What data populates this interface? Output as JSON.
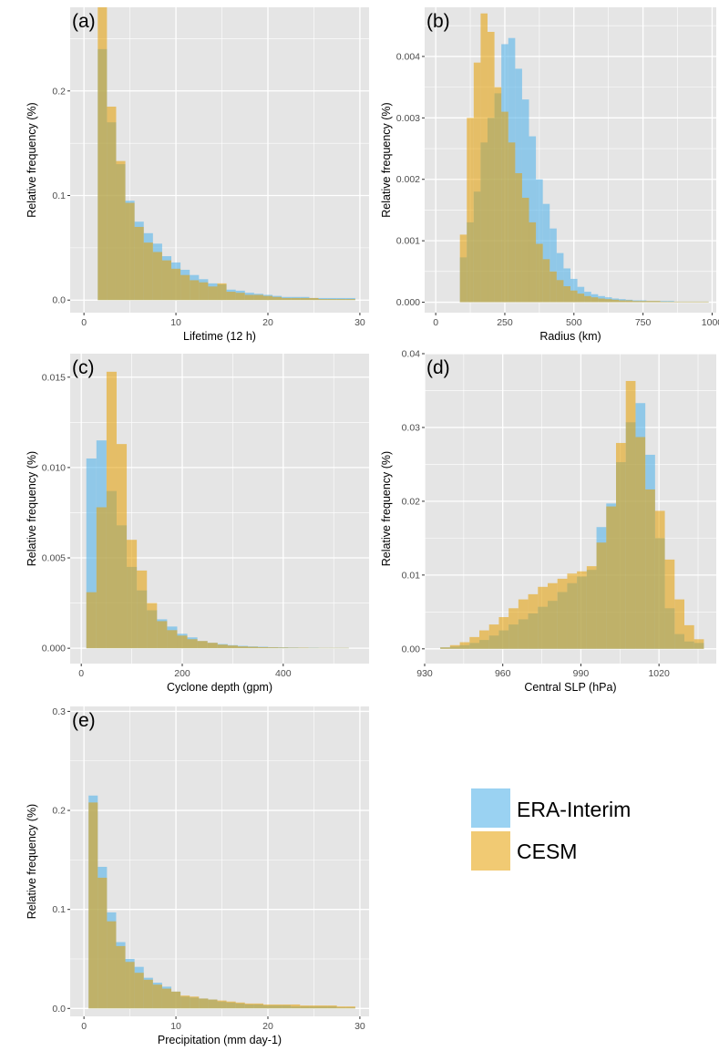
{
  "legend": {
    "items": [
      {
        "label": "ERA-Interim",
        "color": "#56B4E9"
      },
      {
        "label": "CESM",
        "color": "#E69F00"
      }
    ]
  },
  "colors": {
    "panel_bg": "#E5E5E5",
    "grid": "#FFFFFF",
    "era": "#56B4E9",
    "cesm": "#E69F00"
  },
  "chart_data": [
    {
      "type": "bar",
      "panel_label": "(a)",
      "xlabel": "Lifetime (12 h)",
      "ylabel": "Relative frequency (%)",
      "xlim": [
        -1.5,
        31
      ],
      "ylim": [
        -0.012,
        0.28
      ],
      "xticks": [
        0,
        10,
        20,
        30
      ],
      "yticks": [
        0.0,
        0.1,
        0.2
      ],
      "ytick_labels": [
        "0.0",
        "0.1",
        "0.2"
      ],
      "bin_start": 1.5,
      "bin_width": 1,
      "series": [
        {
          "name": "ERA-Interim",
          "values": [
            0.24,
            0.17,
            0.13,
            0.095,
            0.075,
            0.064,
            0.054,
            0.042,
            0.036,
            0.029,
            0.024,
            0.02,
            0.016,
            0.015,
            0.01,
            0.009,
            0.007,
            0.006,
            0.005,
            0.004,
            0.003,
            0.003,
            0.003,
            0.002,
            0.002,
            0.002,
            0.002,
            0.002
          ]
        },
        {
          "name": "CESM",
          "values": [
            0.28,
            0.185,
            0.133,
            0.093,
            0.07,
            0.055,
            0.046,
            0.038,
            0.03,
            0.024,
            0.019,
            0.017,
            0.013,
            0.016,
            0.008,
            0.007,
            0.005,
            0.005,
            0.004,
            0.003,
            0.002,
            0.002,
            0.002,
            0.002,
            0.001,
            0.001,
            0.001,
            0.001
          ]
        }
      ]
    },
    {
      "type": "bar",
      "panel_label": "(b)",
      "xlabel": "Radius (km)",
      "ylabel": "Relative frequency (%)",
      "xlim": [
        -40,
        1015
      ],
      "ylim": [
        -0.00017,
        0.0048
      ],
      "xticks": [
        0,
        250,
        500,
        750,
        1000
      ],
      "yticks": [
        0.0,
        0.001,
        0.002,
        0.003,
        0.004
      ],
      "ytick_labels": [
        "0.000",
        "0.001",
        "0.002",
        "0.003",
        "0.004"
      ],
      "bin_start": 87.5,
      "bin_width": 25,
      "series": [
        {
          "name": "ERA-Interim",
          "values": [
            0.00073,
            0.0013,
            0.0018,
            0.0026,
            0.003,
            0.0034,
            0.0042,
            0.0043,
            0.0038,
            0.0033,
            0.0027,
            0.002,
            0.0016,
            0.0012,
            0.0008,
            0.00055,
            0.00038,
            0.00025,
            0.00017,
            0.00013,
            0.0001,
            8e-05,
            6e-05,
            5e-05,
            4e-05,
            3e-05,
            3e-05,
            2e-05,
            2e-05,
            2e-05,
            2e-05,
            1e-05,
            1e-05,
            1e-05,
            1e-05,
            1e-05
          ]
        },
        {
          "name": "CESM",
          "values": [
            0.0011,
            0.003,
            0.0039,
            0.0047,
            0.0044,
            0.0035,
            0.0031,
            0.0026,
            0.0021,
            0.0017,
            0.0013,
            0.00095,
            0.0007,
            0.0005,
            0.00036,
            0.00026,
            0.00019,
            0.00014,
            0.0001,
            8e-05,
            6e-05,
            5e-05,
            4e-05,
            3e-05,
            3e-05,
            2e-05,
            2e-05,
            2e-05,
            2e-05,
            1e-05,
            1e-05,
            1e-05,
            1e-05,
            1e-05,
            1e-05,
            1e-05
          ]
        }
      ]
    },
    {
      "type": "bar",
      "panel_label": "(c)",
      "xlabel": "Cyclone depth (gpm)",
      "ylabel": "Relative frequency (%)",
      "xlim": [
        -22,
        570
      ],
      "ylim": [
        -0.00085,
        0.0163
      ],
      "xticks": [
        0,
        200,
        400
      ],
      "yticks": [
        0.0,
        0.005,
        0.01,
        0.015
      ],
      "ytick_labels": [
        "0.000",
        "0.005",
        "0.010",
        "0.015"
      ],
      "bin_start": 10,
      "bin_width": 20,
      "series": [
        {
          "name": "ERA-Interim",
          "values": [
            0.0105,
            0.0115,
            0.0087,
            0.0068,
            0.0045,
            0.0032,
            0.0021,
            0.0016,
            0.0012,
            0.0008,
            0.0006,
            0.0004,
            0.0003,
            0.00023,
            0.00017,
            0.00013,
            0.0001,
            8e-05,
            6e-05,
            5e-05,
            4e-05,
            3e-05,
            3e-05,
            2e-05,
            2e-05,
            2e-05
          ]
        },
        {
          "name": "CESM",
          "values": [
            0.0031,
            0.0078,
            0.0153,
            0.0113,
            0.006,
            0.0043,
            0.0025,
            0.0015,
            0.001,
            0.0007,
            0.0005,
            0.0004,
            0.0003,
            0.0002,
            0.00015,
            0.0001,
            8e-05,
            6e-05,
            5e-05,
            4e-05,
            3e-05,
            3e-05,
            2e-05,
            2e-05,
            2e-05,
            2e-05
          ]
        }
      ]
    },
    {
      "type": "bar",
      "panel_label": "(d)",
      "xlabel": "Central SLP (hPa)",
      "ylabel": "Relative frequency (%)",
      "xlim": [
        930,
        1042
      ],
      "ylim": [
        -0.002,
        0.04
      ],
      "xticks": [
        930,
        960,
        990,
        1020
      ],
      "yticks": [
        0.0,
        0.01,
        0.02,
        0.03,
        0.04
      ],
      "ytick_labels": [
        "0.00",
        "0.01",
        "0.02",
        "0.03",
        "0.04"
      ],
      "bin_start": 936,
      "bin_width": 3.75,
      "series": [
        {
          "name": "ERA-Interim",
          "values": [
            0.0002,
            0.0003,
            0.0005,
            0.0008,
            0.0012,
            0.0018,
            0.0025,
            0.0033,
            0.004,
            0.0048,
            0.0057,
            0.0065,
            0.0077,
            0.0089,
            0.0098,
            0.0107,
            0.0165,
            0.0197,
            0.0253,
            0.0307,
            0.0333,
            0.0263,
            0.015,
            0.0055,
            0.002,
            0.001,
            0.0008
          ]
        },
        {
          "name": "CESM",
          "values": [
            0.0002,
            0.0005,
            0.0009,
            0.0016,
            0.0025,
            0.0033,
            0.0043,
            0.0055,
            0.0067,
            0.0074,
            0.0084,
            0.0089,
            0.0095,
            0.0102,
            0.0105,
            0.0112,
            0.0144,
            0.0193,
            0.0279,
            0.0363,
            0.0287,
            0.0216,
            0.0187,
            0.0121,
            0.0067,
            0.0032,
            0.0013
          ]
        }
      ]
    },
    {
      "type": "bar",
      "panel_label": "(e)",
      "xlabel": "Precipitation (mm day-1)",
      "ylabel": "Relative frequency (%)",
      "xlim": [
        -1.5,
        31
      ],
      "ylim": [
        -0.008,
        0.305
      ],
      "xticks": [
        0,
        10,
        20,
        30
      ],
      "yticks": [
        0.0,
        0.1,
        0.2,
        0.3
      ],
      "ytick_labels": [
        "0.0",
        "0.1",
        "0.2",
        "0.3"
      ],
      "bin_start": 0.5,
      "bin_width": 1,
      "series": [
        {
          "name": "ERA-Interim",
          "values": [
            0.215,
            0.143,
            0.097,
            0.067,
            0.05,
            0.042,
            0.031,
            0.026,
            0.022,
            0.017,
            0.012,
            0.011,
            0.01,
            0.009,
            0.007,
            0.006,
            0.005,
            0.004,
            0.004,
            0.003,
            0.003,
            0.003,
            0.002,
            0.002,
            0.002,
            0.002,
            0.002,
            0.001,
            0.001
          ]
        },
        {
          "name": "CESM",
          "values": [
            0.208,
            0.132,
            0.088,
            0.063,
            0.047,
            0.036,
            0.029,
            0.024,
            0.02,
            0.017,
            0.013,
            0.012,
            0.01,
            0.009,
            0.008,
            0.007,
            0.006,
            0.005,
            0.005,
            0.004,
            0.004,
            0.004,
            0.004,
            0.003,
            0.003,
            0.003,
            0.003,
            0.002,
            0.002
          ]
        }
      ]
    }
  ]
}
